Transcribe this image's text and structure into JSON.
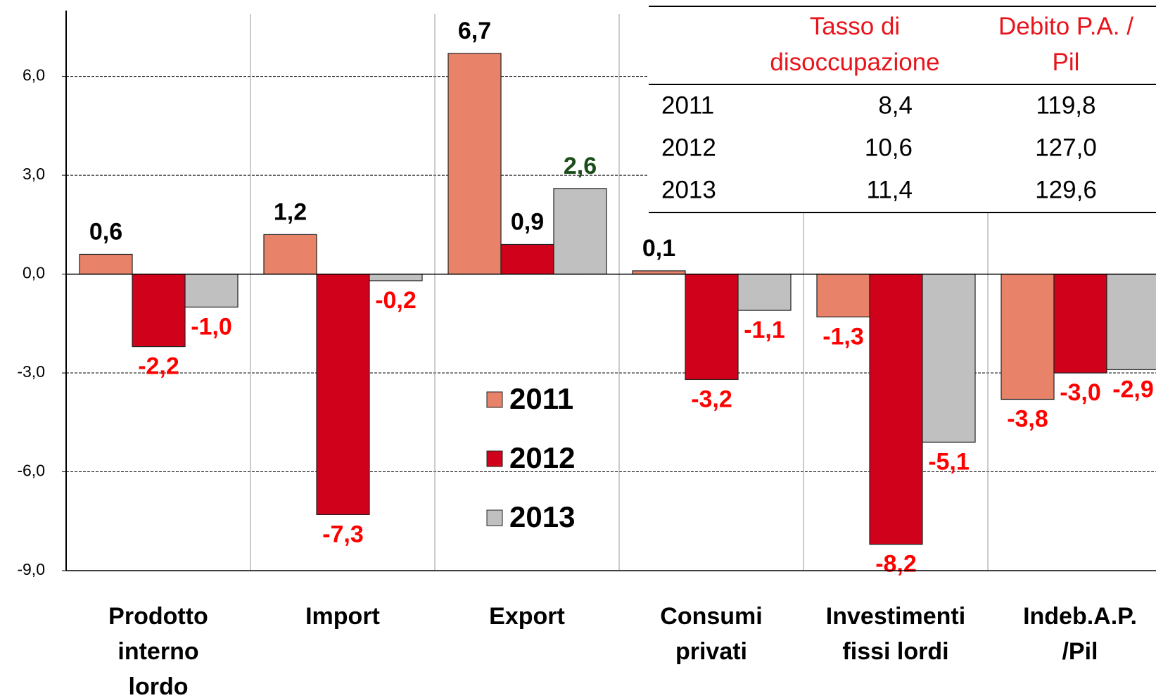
{
  "chart_data": {
    "type": "bar",
    "categories": [
      "Prodotto\ninterno\nlordo",
      "Import",
      "Export",
      "Consumi\nprivati",
      "Investimenti\nfissi lordi",
      "Indeb.A.P.\n/Pil"
    ],
    "series": [
      {
        "name": "2011",
        "color": "#e8836a",
        "label_color_positive": "#000000",
        "label_color_negative": "#ff0000",
        "values": [
          0.6,
          1.2,
          6.7,
          0.1,
          -1.3,
          -3.8
        ],
        "value_labels": [
          "0,6",
          "1,2",
          "6,7",
          "0,1",
          "-1,3",
          "-3,8"
        ]
      },
      {
        "name": "2012",
        "color": "#d0021b",
        "label_color_positive": "#000000",
        "label_color_negative": "#ff0000",
        "values": [
          -2.2,
          -7.3,
          0.9,
          -3.2,
          -8.2,
          -3.0
        ],
        "value_labels": [
          "-2,2",
          "-7,3",
          "0,9",
          "-3,2",
          "-8,2",
          "-3,0"
        ]
      },
      {
        "name": "2013",
        "color": "#c0c0c0",
        "label_color_positive": "#1a4d1a",
        "label_color_negative": "#ff0000",
        "values": [
          -1.0,
          -0.2,
          2.6,
          -1.1,
          -5.1,
          -2.9
        ],
        "value_labels": [
          "-1,0",
          "-0,2",
          "2,6",
          "-1,1",
          "-5,1",
          "-2,9"
        ]
      }
    ],
    "ylim": [
      -9,
      8
    ],
    "yticks": [
      {
        "value": -9,
        "label": "-9,0"
      },
      {
        "value": -6,
        "label": "-6,0"
      },
      {
        "value": -3,
        "label": "-3,0"
      },
      {
        "value": 0,
        "label": "0,0"
      },
      {
        "value": 3,
        "label": "3,0"
      },
      {
        "value": 6,
        "label": "6,0"
      }
    ],
    "grid": true,
    "table": {
      "columns": [
        "",
        "Tasso di\ndisoccupazione",
        "Debito P.A. /\nPil"
      ],
      "rows": [
        [
          "2011",
          "8,4",
          "119,8"
        ],
        [
          "2012",
          "10,6",
          "127,0"
        ],
        [
          "2013",
          "11,4",
          "129,6"
        ]
      ]
    }
  }
}
